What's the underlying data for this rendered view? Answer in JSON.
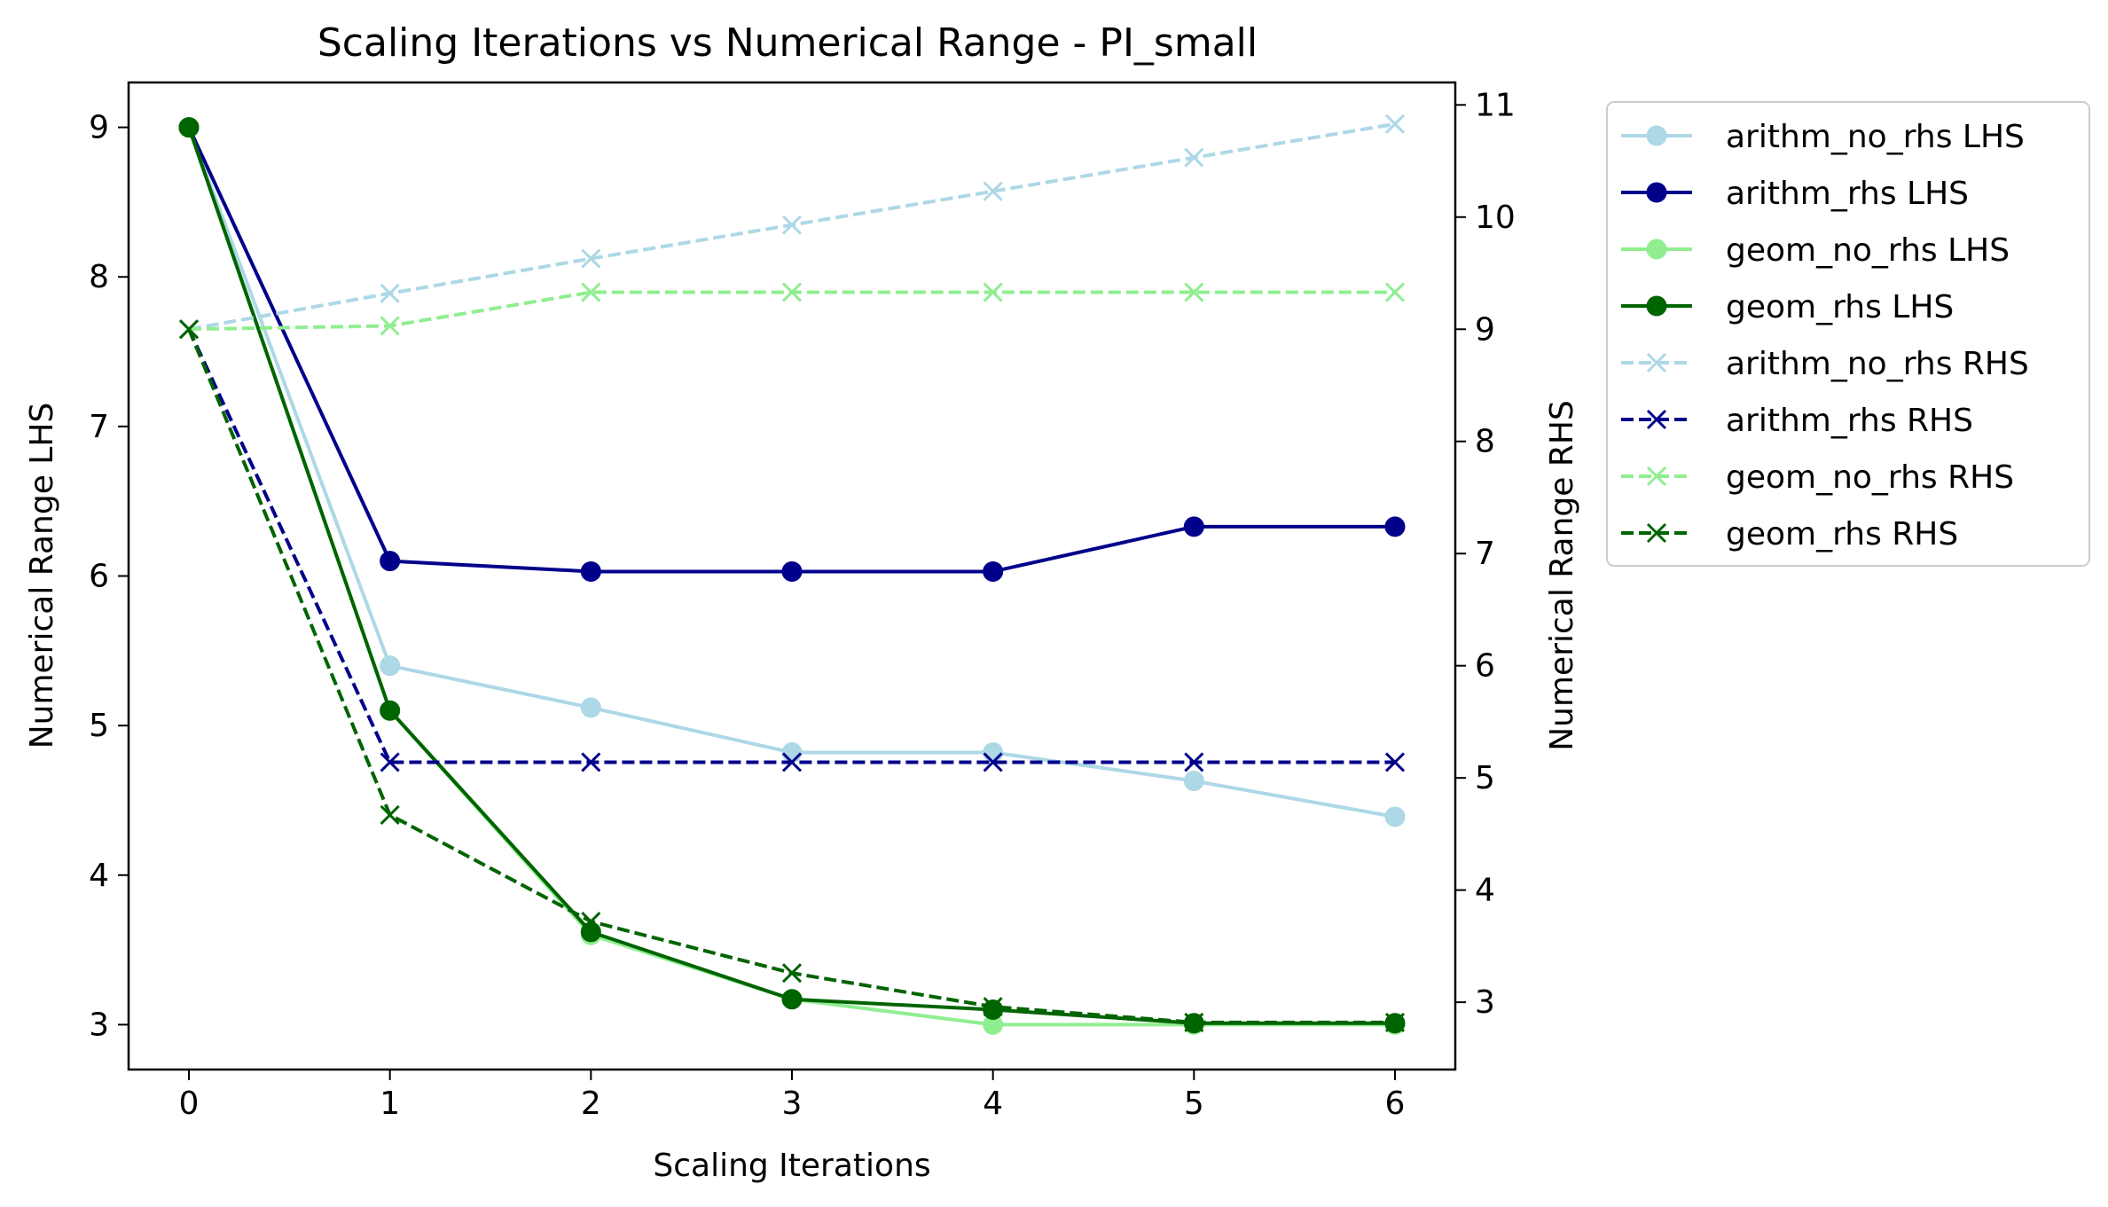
{
  "chart_data": {
    "type": "line",
    "title": "Scaling Iterations vs Numerical Range - PI_small",
    "xlabel": "Scaling Iterations",
    "ylabel_left": "Numerical Range LHS",
    "ylabel_right": "Numerical Range RHS",
    "x": [
      0,
      1,
      2,
      3,
      4,
      5,
      6
    ],
    "xlim": [
      -0.3,
      6.3
    ],
    "ylim_left": [
      2.7,
      9.3
    ],
    "ylim_right": [
      2.4,
      11.2
    ],
    "xticks": [
      0,
      1,
      2,
      3,
      4,
      5,
      6
    ],
    "yticks_left": [
      3,
      4,
      5,
      6,
      7,
      8,
      9
    ],
    "yticks_right": [
      3,
      4,
      5,
      6,
      7,
      8,
      9,
      10,
      11
    ],
    "grid": false,
    "legend_position": "outside-right",
    "series": [
      {
        "name": "arithm_no_rhs LHS",
        "axis": "left",
        "color": "#add8e6",
        "style": "solid",
        "marker": "circle",
        "values": [
          9.0,
          5.4,
          5.12,
          4.82,
          4.82,
          4.63,
          4.39
        ]
      },
      {
        "name": "arithm_rhs LHS",
        "axis": "left",
        "color": "#00008b",
        "style": "solid",
        "marker": "circle",
        "values": [
          9.0,
          6.1,
          6.03,
          6.03,
          6.03,
          6.33,
          6.33
        ]
      },
      {
        "name": "geom_no_rhs LHS",
        "axis": "left",
        "color": "#90ee90",
        "style": "solid",
        "marker": "circle",
        "values": [
          9.0,
          5.1,
          3.6,
          3.17,
          3.0,
          3.0,
          3.0
        ]
      },
      {
        "name": "geom_rhs LHS",
        "axis": "left",
        "color": "#006400",
        "style": "solid",
        "marker": "circle",
        "values": [
          9.0,
          5.1,
          3.62,
          3.17,
          3.1,
          3.01,
          3.01
        ]
      },
      {
        "name": "arithm_no_rhs RHS",
        "axis": "right",
        "color": "#add8e6",
        "style": "dashed",
        "marker": "x",
        "values": [
          9.0,
          9.32,
          9.63,
          9.93,
          10.23,
          10.53,
          10.83
        ]
      },
      {
        "name": "arithm_rhs RHS",
        "axis": "right",
        "color": "#00008b",
        "style": "dashed",
        "marker": "x",
        "values": [
          9.0,
          5.14,
          5.14,
          5.14,
          5.14,
          5.14,
          5.14
        ]
      },
      {
        "name": "geom_no_rhs RHS",
        "axis": "right",
        "color": "#90ee90",
        "style": "dashed",
        "marker": "x",
        "values": [
          9.0,
          9.03,
          9.33,
          9.33,
          9.33,
          9.33,
          9.33
        ]
      },
      {
        "name": "geom_rhs RHS",
        "axis": "right",
        "color": "#006400",
        "style": "dashed",
        "marker": "x",
        "values": [
          9.0,
          4.67,
          3.72,
          3.26,
          2.96,
          2.82,
          2.82
        ]
      }
    ]
  }
}
